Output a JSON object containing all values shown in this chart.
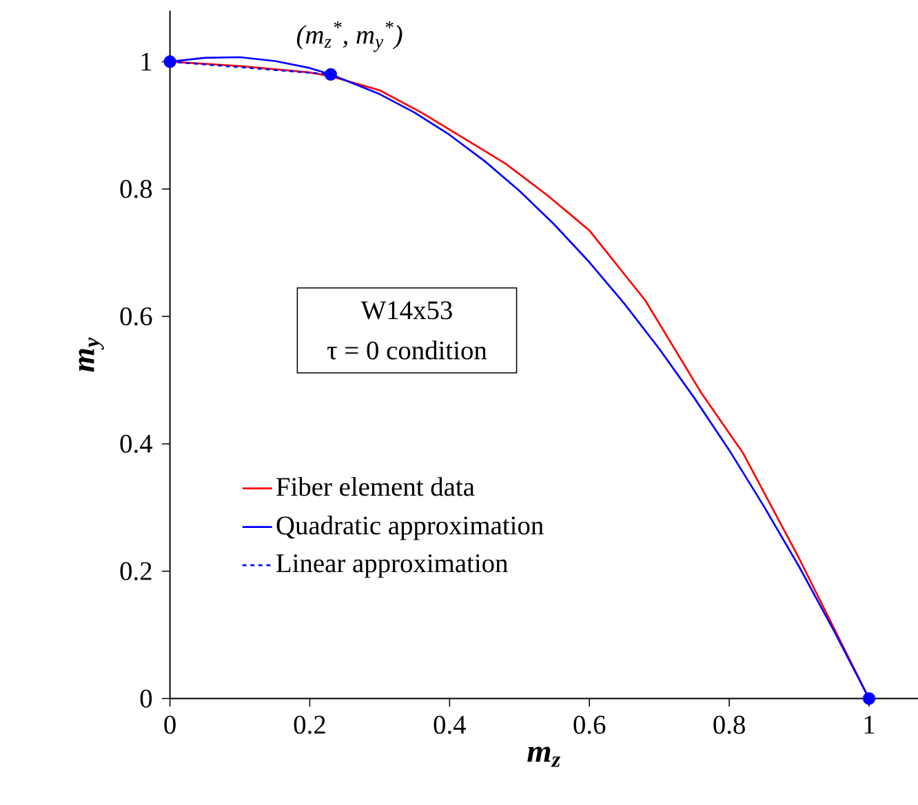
{
  "chart_data": {
    "type": "line",
    "xlabel": "m$_{z}$",
    "ylabel": "m$_{y}$",
    "xlim": [
      0,
      1.07
    ],
    "ylim": [
      0,
      1.08
    ],
    "xticks": [
      0,
      0.2,
      0.4,
      0.6,
      0.8,
      1
    ],
    "yticks": [
      0,
      0.2,
      0.4,
      0.6,
      0.8,
      1
    ],
    "legend": "left",
    "annotations": [
      {
        "text": "(m$_{z}$$^{*}$, m$_{y}$$^{*}$)",
        "x": 0.23,
        "y": 0.98
      },
      "W14x53",
      "τ = 0 condition"
    ],
    "series": [
      {
        "name": "Fiber element data",
        "color": "#ff0000",
        "line_style": "solid",
        "x": [
          0,
          0.1,
          0.2,
          0.23,
          0.3,
          0.36,
          0.42,
          0.48,
          0.54,
          0.6,
          0.68,
          0.76,
          0.82,
          0.9,
          0.95,
          1
        ],
        "values": [
          1,
          0.993,
          0.983,
          0.977,
          0.955,
          0.92,
          0.88,
          0.84,
          0.79,
          0.735,
          0.625,
          0.48,
          0.385,
          0.22,
          0.11,
          0
        ]
      },
      {
        "name": "Quadratic approximation",
        "color": "#0000ff",
        "line_style": "solid",
        "x": [
          0,
          0.05,
          0.1,
          0.15,
          0.2,
          0.23,
          0.3,
          0.35,
          0.4,
          0.45,
          0.5,
          0.55,
          0.6,
          0.65,
          0.7,
          0.75,
          0.8,
          0.85,
          0.9,
          0.95,
          1
        ],
        "values": [
          1,
          1.006,
          1.007,
          1.001,
          0.99,
          0.98,
          0.949,
          0.92,
          0.885,
          0.844,
          0.797,
          0.744,
          0.685,
          0.62,
          0.549,
          0.472,
          0.39,
          0.301,
          0.207,
          0.106,
          0
        ]
      },
      {
        "name": "Linear approximation",
        "color": "#0000ff",
        "line_style": "dashed",
        "x": [
          0,
          0.23
        ],
        "values": [
          1,
          0.98
        ]
      },
      {
        "type": "scatter",
        "color": "#0000ff",
        "marker": "circle",
        "x": [
          0,
          0.23,
          1
        ],
        "values": [
          1,
          0.98,
          0
        ]
      }
    ]
  }
}
